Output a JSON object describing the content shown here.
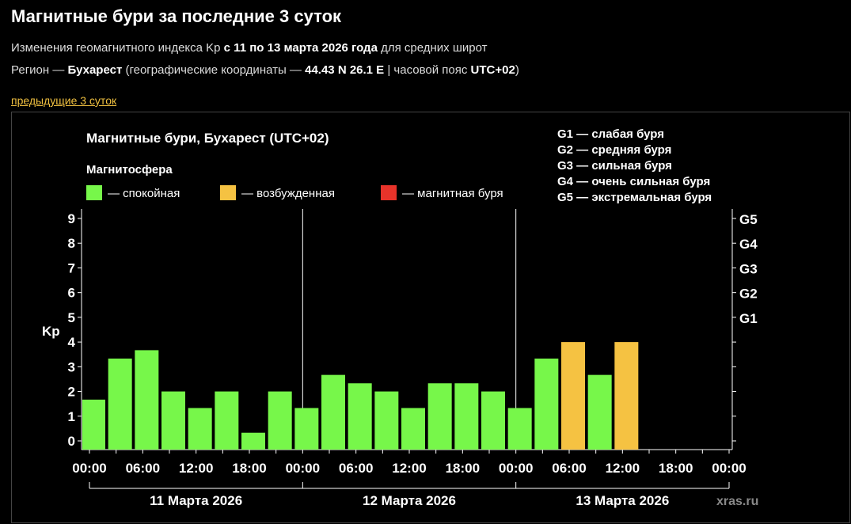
{
  "page": {
    "title": "Магнитные бури за последние 3 суток",
    "line1": {
      "a": "Изменения геомагнитного индекса Kp ",
      "b": "с 11 по 13 марта 2026 года",
      "c": " для средних широт"
    },
    "line2": {
      "a": "Регион — ",
      "b": "Бухарест",
      "c": " (географические координаты — ",
      "d": "44.43 N 26.1 E",
      "e": " | часовой пояс ",
      "f": "UTC+02",
      ")": ")"
    },
    "prev_link": "предыдущие 3 суток"
  },
  "chart_data": {
    "type": "bar",
    "title": "Магнитные бури, Бухарест (UTC+02)",
    "legend_title": "Магнитосфера",
    "legend": [
      {
        "label": "— спокойная",
        "color": "#77f74a"
      },
      {
        "label": "— возбужденная",
        "color": "#f5c242"
      },
      {
        "label": "— магнитная буря",
        "color": "#e8332a"
      }
    ],
    "storm_legend": [
      "G1 — слабая буря",
      "G2 — средняя буря",
      "G3 — сильная буря",
      "G4 — очень сильная буря",
      "G5 — экстремальная буря"
    ],
    "ylabel": "Kp",
    "ylim": [
      0,
      9
    ],
    "yticks": [
      "0",
      "1",
      "2",
      "3",
      "4",
      "5",
      "6",
      "7",
      "8",
      "9"
    ],
    "right_ticks": [
      {
        "kp": 5,
        "label": "G1"
      },
      {
        "kp": 6,
        "label": "G2"
      },
      {
        "kp": 7,
        "label": "G3"
      },
      {
        "kp": 8,
        "label": "G4"
      },
      {
        "kp": 9,
        "label": "G5"
      }
    ],
    "xticks": [
      "00:00",
      "06:00",
      "12:00",
      "18:00",
      "00:00",
      "06:00",
      "12:00",
      "18:00",
      "00:00",
      "06:00",
      "12:00",
      "18:00",
      "00:00"
    ],
    "days": [
      "11 Марта 2026",
      "12 Марта 2026",
      "13 Марта 2026"
    ],
    "interval_hours": 3,
    "values": [
      1.67,
      3.33,
      3.67,
      2,
      1.33,
      2,
      0.33,
      2,
      1.33,
      2.67,
      2.33,
      2,
      1.33,
      2.33,
      2.33,
      2,
      1.33,
      3.33,
      4,
      2.67,
      4
    ],
    "status": [
      "quiet",
      "quiet",
      "quiet",
      "quiet",
      "quiet",
      "quiet",
      "quiet",
      "quiet",
      "quiet",
      "quiet",
      "quiet",
      "quiet",
      "quiet",
      "quiet",
      "quiet",
      "quiet",
      "quiet",
      "quiet",
      "active",
      "quiet",
      "active"
    ],
    "colors": {
      "quiet": "#77f74a",
      "active": "#f5c242",
      "storm": "#e8332a"
    },
    "watermark": "xras.ru"
  }
}
